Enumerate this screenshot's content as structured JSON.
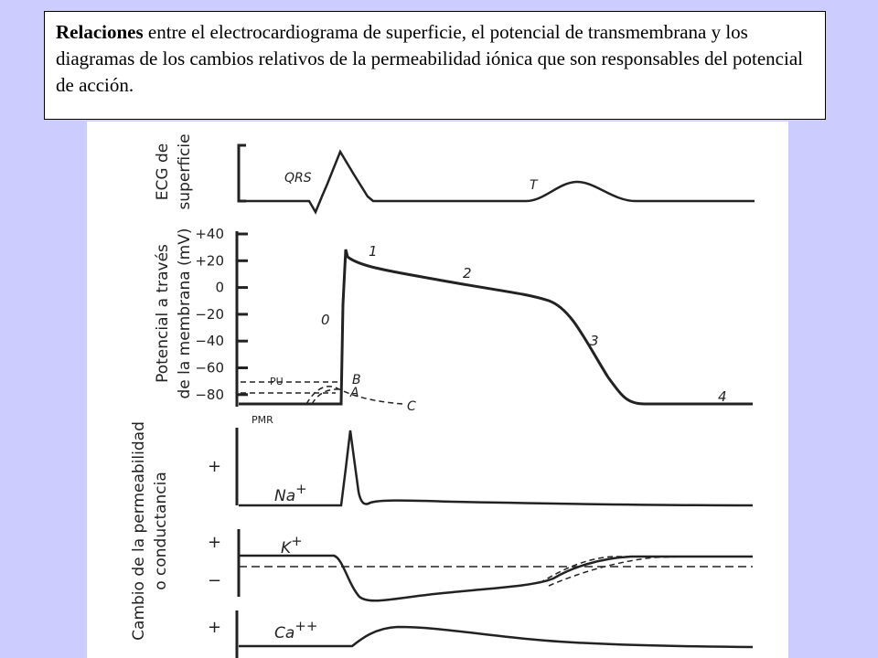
{
  "caption": {
    "bold": "Relaciones",
    "rest": " entre el electrocardiograma de superficie, el potencial de transmembrana y los diagramas de los cambios relativos de la permeabilidad iónica que son responsables del potencial de acción."
  },
  "ecg": {
    "axis_line1": "ECG de",
    "axis_line2": "superficie",
    "qrs": "QRS",
    "t": "T"
  },
  "potential": {
    "axis_line1": "Potencial a través",
    "axis_line2": "de la membrana (mV)",
    "ticks": [
      "+40",
      "+20",
      "0",
      "−20",
      "−40",
      "−60",
      "−80"
    ],
    "phase_0": "0",
    "phase_1": "1",
    "phase_2": "2",
    "phase_3": "3",
    "phase_4": "4",
    "pu": "PU",
    "pmr": "PMR",
    "a": "A",
    "b": "B",
    "c": "C"
  },
  "permeability": {
    "axis_line1": "Cambio de la permeabilidad",
    "axis_line2": "o conductancia",
    "na": "Na",
    "na_sup": "+",
    "k": "K",
    "k_sup": "+",
    "ca": "Ca",
    "ca_sup": "++",
    "plus_na": "+",
    "plus_k": "+",
    "minus_k": "−",
    "plus_ca": "+"
  }
}
